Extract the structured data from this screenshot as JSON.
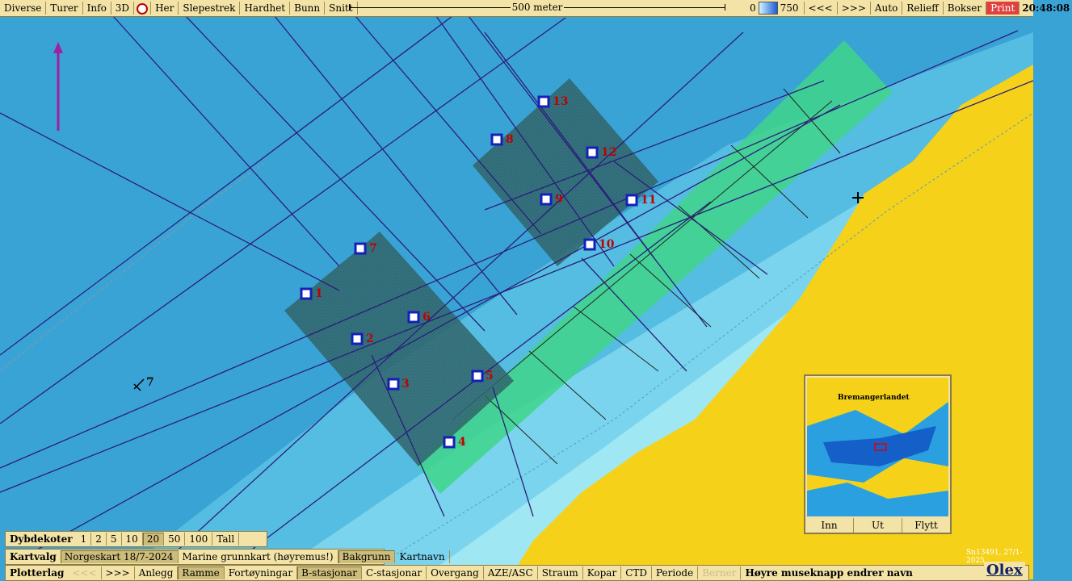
{
  "topbar": {
    "buttons": [
      "Diverse",
      "Turer",
      "Info",
      "3D",
      "Her",
      "Slepestrek",
      "Hardhet",
      "Bunn",
      "Snitt"
    ],
    "scale_label": "500 meter",
    "depth_min": "0",
    "depth_max": "750",
    "nav_back": "<<<",
    "nav_fwd": ">>>",
    "buttons_right": [
      "Auto",
      "Relieff",
      "Bokser"
    ],
    "print": "Print",
    "time": "20:48:08"
  },
  "stations": [
    "1",
    "2",
    "3",
    "4",
    "5",
    "6",
    "7",
    "8",
    "9",
    "10",
    "11",
    "12",
    "13"
  ],
  "anchor_label": "7",
  "minimap": {
    "place_labels": [
      "Bremangerlandet"
    ],
    "buttons": [
      "Inn",
      "Ut",
      "Flytt"
    ]
  },
  "dybdekoter": {
    "label": "Dybdekoter",
    "values": [
      "1",
      "2",
      "5",
      "10",
      "20",
      "50",
      "100",
      "Tall"
    ],
    "active": "20"
  },
  "kartvalg": {
    "label": "Kartvalg",
    "items": [
      "Norgeskart 18/7-2024",
      "Marine grunnkart (høyremus!)",
      "Bakgrunn",
      "Kartnavn"
    ]
  },
  "plotterlag": {
    "label": "Plotterlag",
    "nav_back": "<<<",
    "nav_fwd": ">>>",
    "items": [
      "Anlegg",
      "Ramme",
      "Fortøyningar",
      "B-stasjonar",
      "C-stasjonar",
      "Overgang",
      "AZE/ASC",
      "Straum",
      "Kopar",
      "CTD",
      "Periode",
      "Berner"
    ],
    "hint": "Høyre museknapp endrer navn"
  },
  "credit": "Sn13491, 27/1-2025",
  "brand": "Olex",
  "colors": {
    "land": "#f6d11a",
    "deep": "#3aa3d6",
    "shallow": "#9fe7f2",
    "grid": "#2d5f63",
    "green": "#3fd58a",
    "track": "#2a1e7a",
    "station": "#1420b8",
    "label": "#c00000"
  }
}
